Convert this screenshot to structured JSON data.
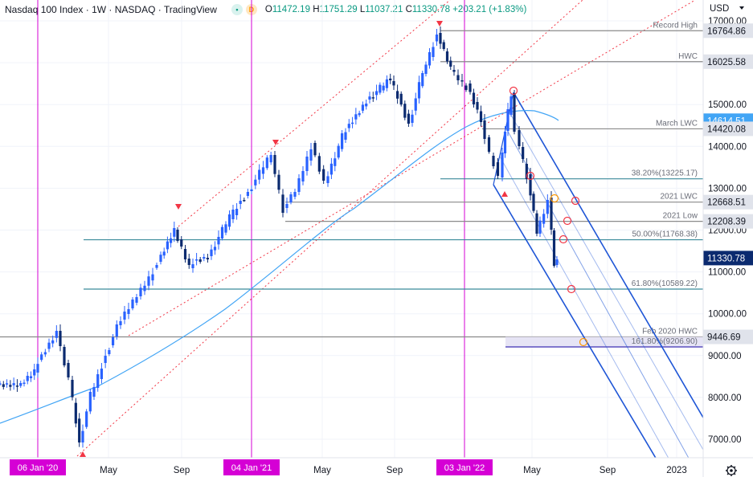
{
  "header": {
    "title": "Nasdaq 100 Index · 1W · NASDAQ · TradingView",
    "badge_g": "•",
    "badge_d": "D",
    "o_label": "O",
    "o_val": "11472.19",
    "h_label": "H",
    "h_val": "11751.29",
    "l_label": "L",
    "l_val": "11037.21",
    "c_label": "C",
    "c_val": "11330.78",
    "change": "+203.21 (+1.83%)"
  },
  "currency": "USD",
  "settings_icon": "gear-icon",
  "colors": {
    "up": "#2962ff",
    "down": "#0b2a6f",
    "channel_red": "#f23645",
    "pitchfork": "#1e55d6",
    "ma": "#42a5f5",
    "teal_line": "#3a8a9a",
    "gray_line": "#8a8a8a",
    "magenta": "#d500d5",
    "marker_orange": "#ff9800"
  },
  "chart_data": {
    "type": "candlestick",
    "title": "Nasdaq 100 Index · 1W · NASDAQ",
    "ylim": [
      6500,
      17300
    ],
    "y_ticks": [
      7000,
      8000,
      9000,
      10000,
      11000,
      12000,
      13000,
      14000,
      15000,
      16000,
      17000
    ],
    "x_tick_labels": [
      "May",
      "Sep",
      "May",
      "Sep",
      "May",
      "Sep",
      "2023"
    ],
    "date_tags": [
      "06 Jan '20",
      "04 Jan '21",
      "03 Jan '22"
    ],
    "last_price": 11330.78,
    "horizontal_levels": [
      {
        "label": "Record High",
        "value": 16764.86,
        "style": "gray"
      },
      {
        "label": "HWC",
        "value": 16025.58,
        "style": "gray"
      },
      {
        "label": "March LWC",
        "value": 14420.08,
        "style": "gray"
      },
      {
        "label": "38.20%(13225.17)",
        "value": 13225.17,
        "style": "teal"
      },
      {
        "label": "2021 LWC",
        "value": 12668.51,
        "style": "gray"
      },
      {
        "label": "2021 Low",
        "value": 12208.39,
        "style": "gray"
      },
      {
        "label": "50.00%(11768.38)",
        "value": 11768.38,
        "style": "teal"
      },
      {
        "label": "61.80%(10589.22)",
        "value": 10589.22,
        "style": "teal"
      },
      {
        "label": "Feb 2020 HWC",
        "value": 9446.69,
        "style": "gray"
      },
      {
        "label": "161.80%(9206.90)",
        "value": 9206.9,
        "style": "zone"
      }
    ],
    "price_tags": [
      {
        "text": "16764.86",
        "value": 16764.86
      },
      {
        "text": "16025.58",
        "value": 16025.58
      },
      {
        "text": "14614.51",
        "value": 14614.51
      },
      {
        "text": "14420.08",
        "value": 14420.08
      },
      {
        "text": "12668.51",
        "value": 12668.51
      },
      {
        "text": "12208.39",
        "value": 12208.39
      },
      {
        "text": "11330.78",
        "value": 11330.78
      },
      {
        "text": "9446.69",
        "value": 9446.69
      }
    ],
    "axis_tick_labels": [
      "7000.00",
      "8000.00",
      "9000.00",
      "10000.00",
      "11000.00",
      "12000.00",
      "13000.00",
      "14000.00",
      "15000.00",
      "16000.00",
      "17000.00"
    ]
  }
}
